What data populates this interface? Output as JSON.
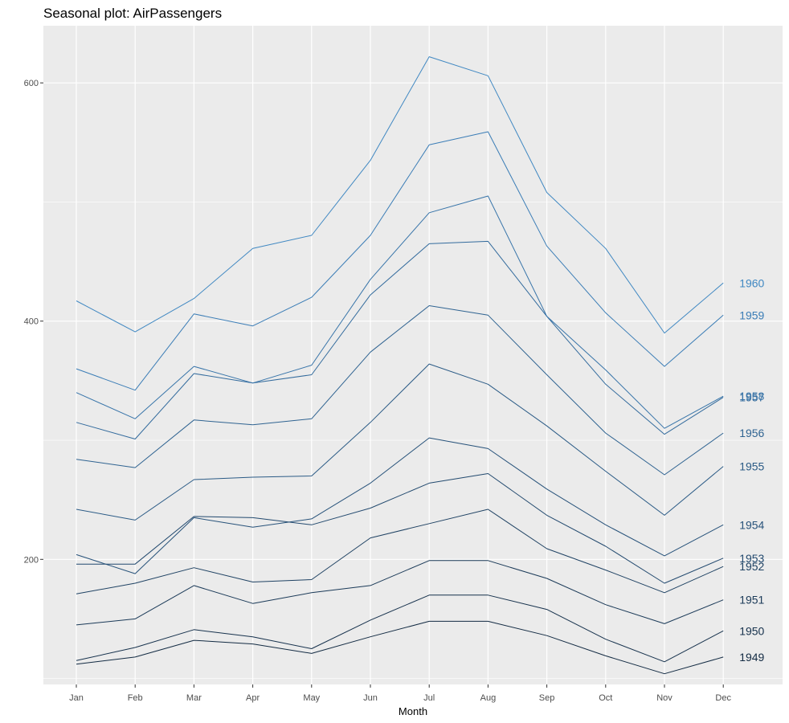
{
  "chart_data": {
    "type": "line",
    "title": "Seasonal plot: AirPassengers",
    "xlabel": "Month",
    "ylabel": "",
    "categories": [
      "Jan",
      "Feb",
      "Mar",
      "Apr",
      "May",
      "Jun",
      "Jul",
      "Aug",
      "Sep",
      "Oct",
      "Nov",
      "Dec"
    ],
    "ylim": [
      95,
      648
    ],
    "yticks": [
      200,
      400,
      600
    ],
    "y_minor_gridlines": [
      100,
      300,
      500
    ],
    "grid": true,
    "series": [
      {
        "name": "1949",
        "color": "#132B43",
        "values": [
          112,
          118,
          132,
          129,
          121,
          135,
          148,
          148,
          136,
          119,
          104,
          118
        ]
      },
      {
        "name": "1950",
        "color": "#17324D",
        "values": [
          115,
          126,
          141,
          135,
          125,
          149,
          170,
          170,
          158,
          133,
          114,
          140
        ]
      },
      {
        "name": "1951",
        "color": "#1B3A58",
        "values": [
          145,
          150,
          178,
          163,
          172,
          178,
          199,
          199,
          184,
          162,
          146,
          166
        ]
      },
      {
        "name": "1952",
        "color": "#1F4263",
        "values": [
          171,
          180,
          193,
          181,
          183,
          218,
          230,
          242,
          209,
          191,
          172,
          194
        ]
      },
      {
        "name": "1953",
        "color": "#234A6F",
        "values": [
          196,
          196,
          236,
          235,
          229,
          243,
          264,
          272,
          237,
          211,
          180,
          201
        ]
      },
      {
        "name": "1954",
        "color": "#27527A",
        "values": [
          204,
          188,
          235,
          227,
          234,
          264,
          302,
          293,
          259,
          229,
          203,
          229
        ]
      },
      {
        "name": "1955",
        "color": "#2B5B86",
        "values": [
          242,
          233,
          267,
          269,
          270,
          315,
          364,
          347,
          312,
          274,
          237,
          278
        ]
      },
      {
        "name": "1956",
        "color": "#2F6391",
        "values": [
          284,
          277,
          317,
          313,
          318,
          374,
          413,
          405,
          355,
          306,
          271,
          306
        ]
      },
      {
        "name": "1957",
        "color": "#336B9D",
        "values": [
          315,
          301,
          356,
          348,
          355,
          422,
          465,
          467,
          404,
          347,
          305,
          336
        ]
      },
      {
        "name": "1958",
        "color": "#3774A9",
        "values": [
          340,
          318,
          362,
          348,
          363,
          435,
          491,
          505,
          404,
          359,
          310,
          337
        ]
      },
      {
        "name": "1959",
        "color": "#3B7DB6",
        "values": [
          360,
          342,
          406,
          396,
          420,
          472,
          548,
          559,
          463,
          407,
          362,
          405
        ]
      },
      {
        "name": "1960",
        "color": "#4088C2",
        "values": [
          417,
          391,
          419,
          461,
          472,
          535,
          622,
          606,
          508,
          461,
          390,
          432
        ]
      }
    ]
  }
}
